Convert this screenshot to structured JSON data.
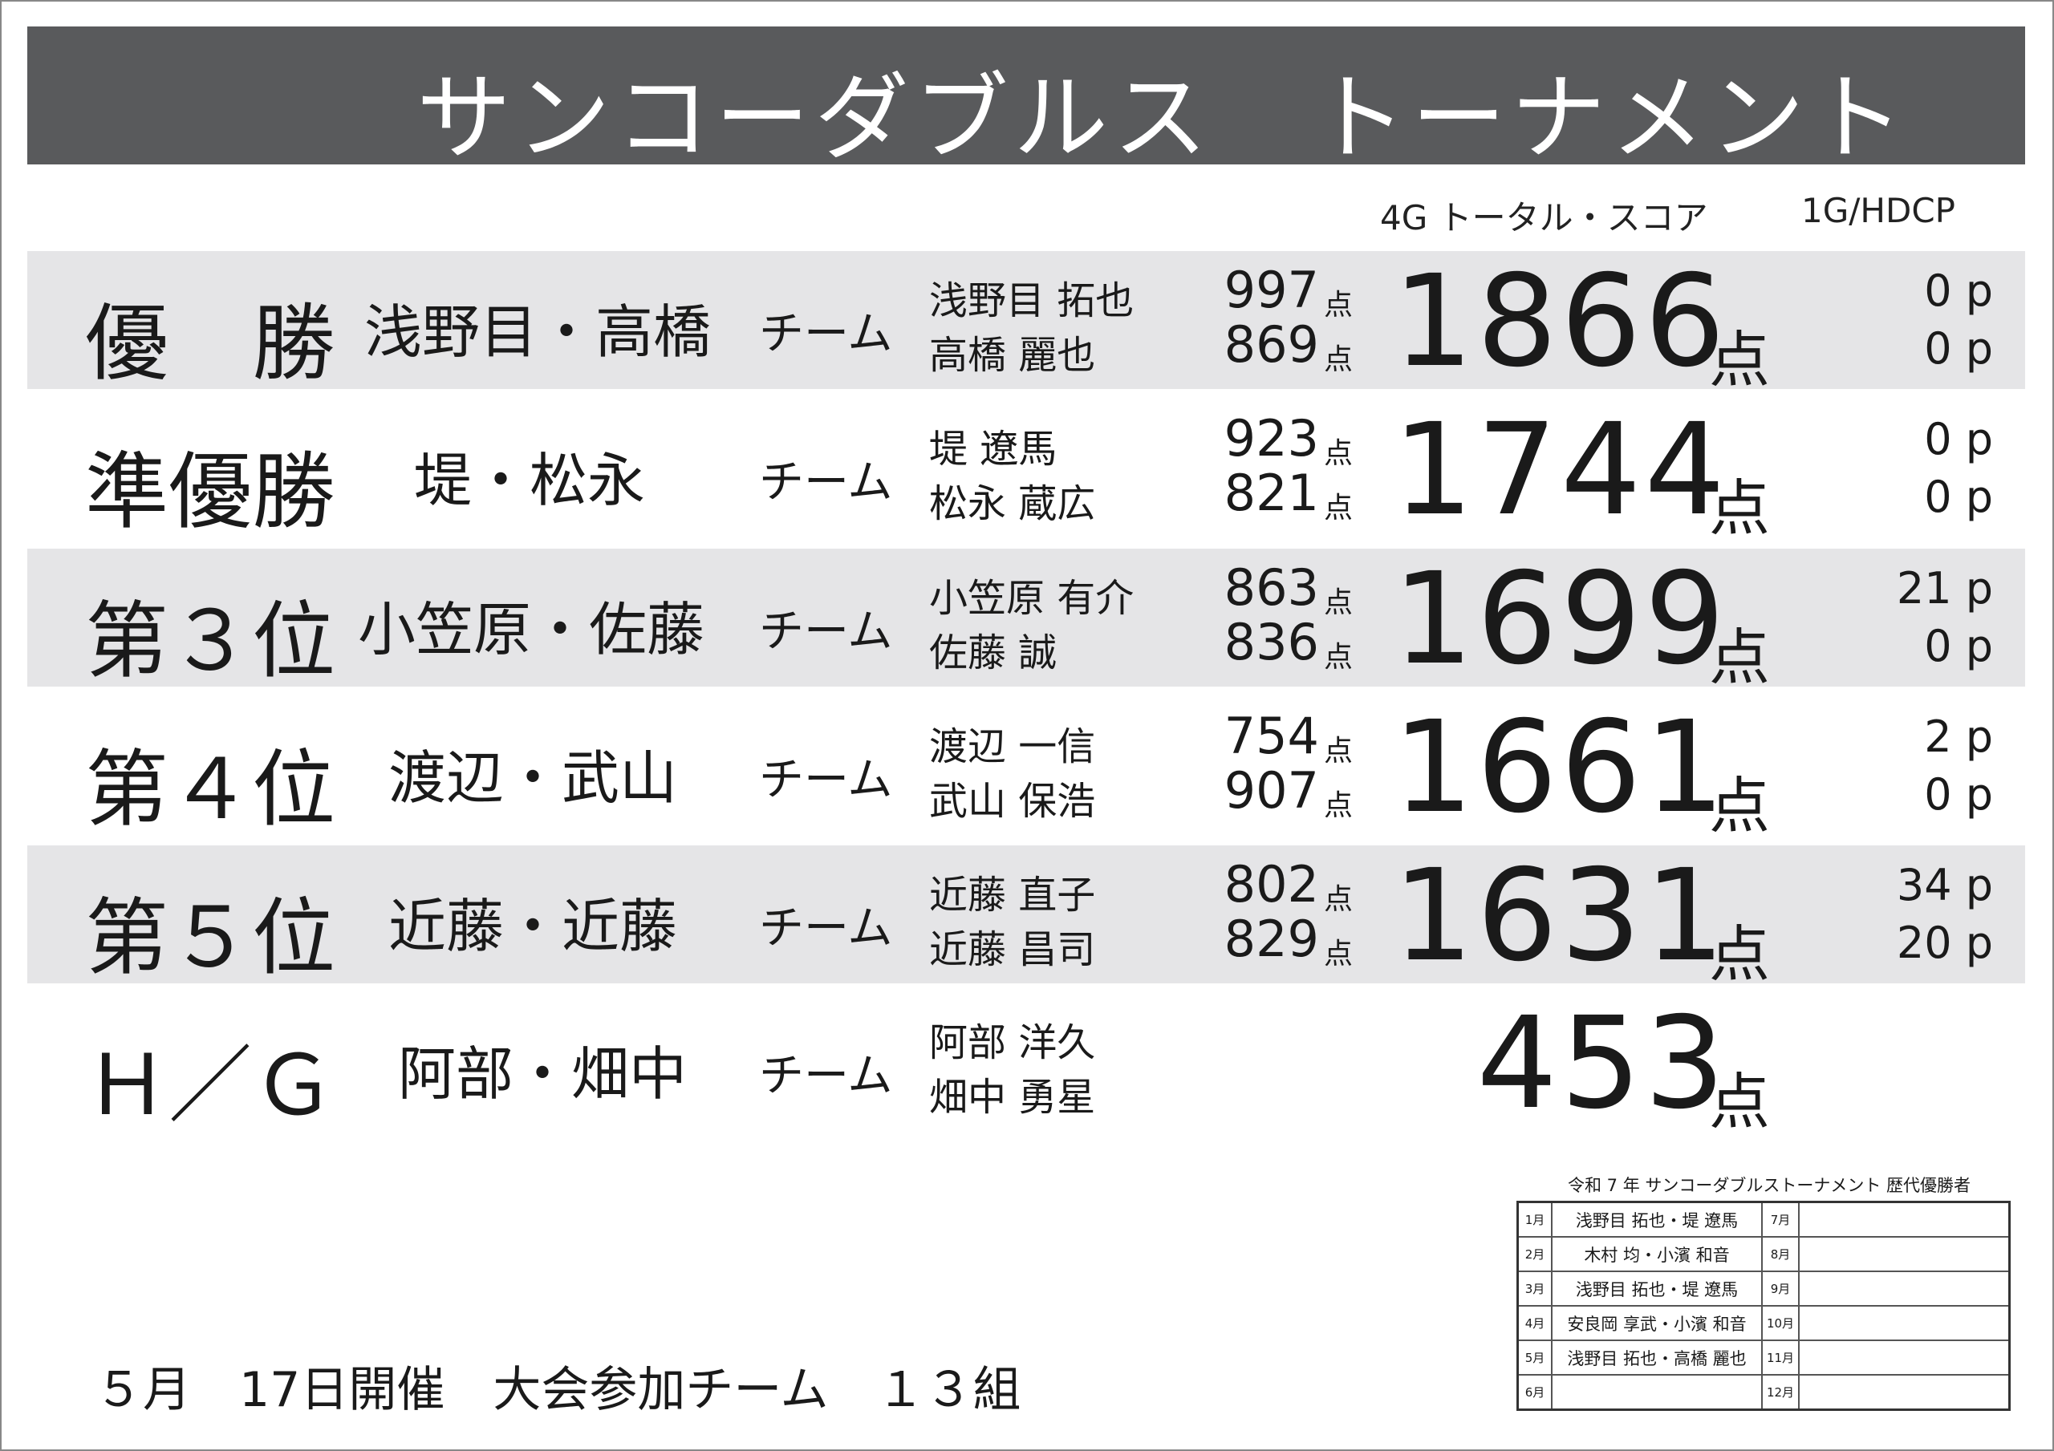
{
  "title": "サンコーダブルス　トーナメント",
  "headers": {
    "total": "4G トータル・スコア",
    "hdcp": "1G/HDCP"
  },
  "score_unit": "点",
  "rows": [
    {
      "rank": "優　勝",
      "team": "浅野目・高橋",
      "suffix": "チーム",
      "players": [
        {
          "name": "浅野目 拓也",
          "score": "997",
          "hdcp": "0 p"
        },
        {
          "name": "高橋 麗也",
          "score": "869",
          "hdcp": "0 p"
        }
      ],
      "total": "1866"
    },
    {
      "rank": "準優勝",
      "team": "堤・松永",
      "suffix": "チーム",
      "players": [
        {
          "name": "堤 遼馬",
          "score": "923",
          "hdcp": "0 p"
        },
        {
          "name": "松永 蔵広",
          "score": "821",
          "hdcp": "0 p"
        }
      ],
      "total": "1744"
    },
    {
      "rank": "第３位",
      "team": "小笠原・佐藤",
      "suffix": "チーム",
      "players": [
        {
          "name": "小笠原 有介",
          "score": "863",
          "hdcp": "21 p"
        },
        {
          "name": "佐藤 誠",
          "score": "836",
          "hdcp": "0 p"
        }
      ],
      "total": "1699"
    },
    {
      "rank": "第４位",
      "team": "渡辺・武山",
      "suffix": "チーム",
      "players": [
        {
          "name": "渡辺 一信",
          "score": "754",
          "hdcp": "2 p"
        },
        {
          "name": "武山 保浩",
          "score": "907",
          "hdcp": "0 p"
        }
      ],
      "total": "1661"
    },
    {
      "rank": "第５位",
      "team": "近藤・近藤",
      "suffix": "チーム",
      "players": [
        {
          "name": "近藤 直子",
          "score": "802",
          "hdcp": "34 p"
        },
        {
          "name": "近藤 昌司",
          "score": "829",
          "hdcp": "20 p"
        }
      ],
      "total": "1631"
    }
  ],
  "high_game": {
    "rank": "Ｈ／Ｇ",
    "team": "阿部・畑中",
    "suffix": "チーム",
    "players": [
      {
        "name": "阿部 洋久"
      },
      {
        "name": "畑中 勇星"
      }
    ],
    "total": "453"
  },
  "footer": "５月　17日開催　大会参加チーム　１３組",
  "history": {
    "title": "令和 7 年 サンコーダブルストーナメント 歴代優勝者",
    "rows": [
      {
        "m1": "1月",
        "w1": "浅野目 拓也・堤 遼馬",
        "m2": "7月",
        "w2": ""
      },
      {
        "m1": "2月",
        "w1": "木村 均・小濱 和音",
        "m2": "8月",
        "w2": ""
      },
      {
        "m1": "3月",
        "w1": "浅野目 拓也・堤 遼馬",
        "m2": "9月",
        "w2": ""
      },
      {
        "m1": "4月",
        "w1": "安良岡 享武・小濱 和音",
        "m2": "10月",
        "w2": ""
      },
      {
        "m1": "5月",
        "w1": "浅野目 拓也・高橋 麗也",
        "m2": "11月",
        "w2": ""
      },
      {
        "m1": "6月",
        "w1": "",
        "m2": "12月",
        "w2": ""
      }
    ]
  }
}
